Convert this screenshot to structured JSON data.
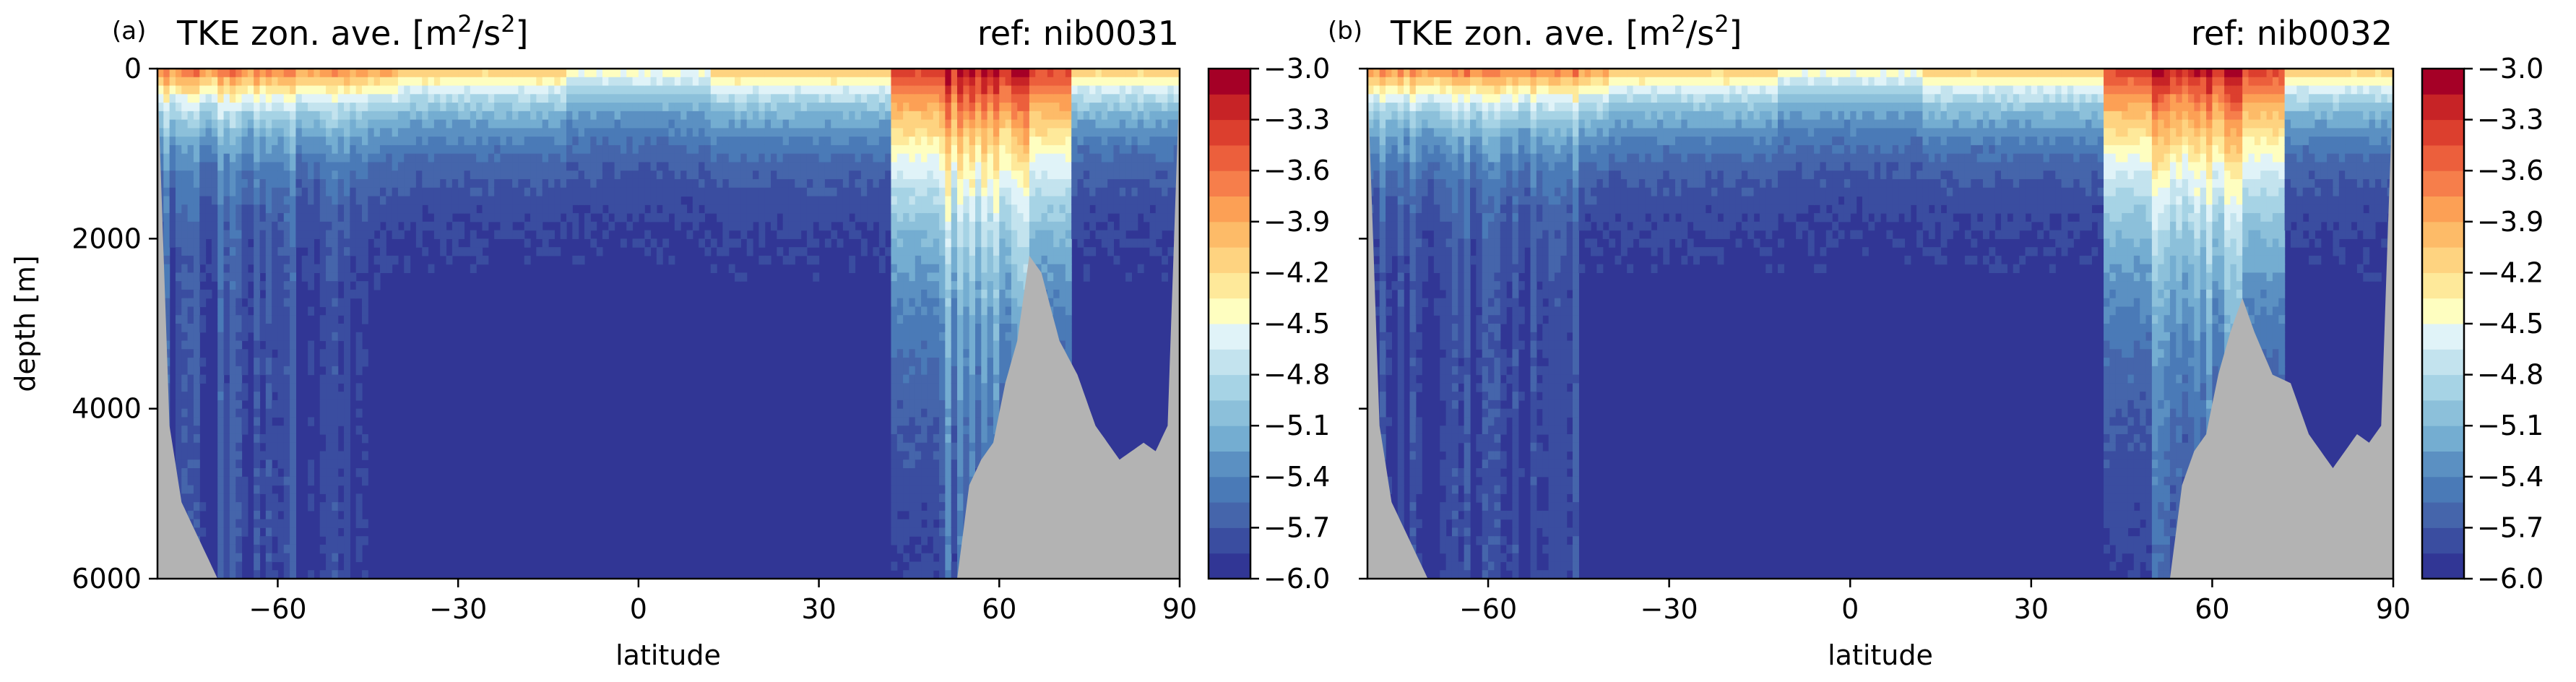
{
  "chart_data": [
    {
      "type": "heatmap",
      "panel_label": "(a)",
      "title": "TKE zon. ave. [m",
      "title_sup1": "2",
      "title_mid": "/s",
      "title_sup2": "2",
      "title_end": "]",
      "ref_label": "ref: nib0031",
      "xlabel": "latitude",
      "ylabel": "depth [m]",
      "xlim": [
        -80,
        90
      ],
      "ylim": [
        6000,
        0
      ],
      "x_ticks": [
        -60,
        -30,
        0,
        30,
        60,
        90
      ],
      "x_tick_labels": [
        "−60",
        "−30",
        "0",
        "30",
        "60",
        "90"
      ],
      "y_ticks": [
        0,
        2000,
        4000,
        6000
      ],
      "y_tick_labels": [
        "0",
        "2000",
        "4000",
        "6000"
      ],
      "colorbar": {
        "min": -6.0,
        "max": -3.0,
        "step": 0.15,
        "tick_values": [
          -3.0,
          -3.3,
          -3.6,
          -3.9,
          -4.2,
          -4.5,
          -4.8,
          -5.1,
          -5.4,
          -5.7,
          -6.0
        ],
        "tick_labels": [
          "−3.0",
          "−3.3",
          "−3.6",
          "−3.9",
          "−4.2",
          "−4.5",
          "−4.8",
          "−5.1",
          "−5.4",
          "−5.7",
          "−6.0"
        ],
        "colormap": "RdYlBu_r"
      },
      "bathymetry": {
        "lat": [
          -80,
          -78,
          -76,
          -74,
          -72,
          -70,
          -68,
          -66,
          -63,
          -60,
          -55,
          -50,
          -40,
          -30,
          -20,
          -10,
          0,
          10,
          20,
          30,
          40,
          50,
          53,
          55,
          57,
          59,
          61,
          63,
          65,
          67,
          70,
          73,
          76,
          80,
          84,
          86,
          88,
          90
        ],
        "depth": [
          100,
          4200,
          5100,
          5400,
          5700,
          6000,
          6000,
          6000,
          6000,
          6000,
          6000,
          6000,
          6000,
          6000,
          6000,
          6000,
          6000,
          6000,
          6000,
          6000,
          6000,
          6000,
          6000,
          4900,
          4600,
          4400,
          3700,
          3200,
          2200,
          2400,
          3200,
          3600,
          4200,
          4600,
          4400,
          4500,
          4200,
          100
        ]
      },
      "land_color": "#b3b3b3"
    },
    {
      "type": "heatmap",
      "panel_label": "(b)",
      "title": "TKE zon. ave. [m",
      "title_sup1": "2",
      "title_mid": "/s",
      "title_sup2": "2",
      "title_end": "]",
      "ref_label": "ref: nib0032",
      "xlabel": "latitude",
      "ylabel": "",
      "xlim": [
        -80,
        90
      ],
      "ylim": [
        6000,
        0
      ],
      "x_ticks": [
        -60,
        -30,
        0,
        30,
        60,
        90
      ],
      "x_tick_labels": [
        "−60",
        "−30",
        "0",
        "30",
        "60",
        "90"
      ],
      "y_ticks": [
        0,
        2000,
        4000,
        6000
      ],
      "colorbar": {
        "min": -6.0,
        "max": -3.0,
        "step": 0.15,
        "tick_values": [
          -3.0,
          -3.3,
          -3.6,
          -3.9,
          -4.2,
          -4.5,
          -4.8,
          -5.1,
          -5.4,
          -5.7,
          -6.0
        ],
        "tick_labels": [
          "−3.0",
          "−3.3",
          "−3.6",
          "−3.9",
          "−4.2",
          "−4.5",
          "−4.8",
          "−5.1",
          "−5.4",
          "−5.7",
          "−6.0"
        ],
        "colormap": "RdYlBu_r"
      },
      "bathymetry": {
        "lat": [
          -80,
          -78,
          -76,
          -74,
          -72,
          -70,
          -68,
          -66,
          -63,
          -60,
          -55,
          -50,
          -40,
          -30,
          -20,
          -10,
          0,
          10,
          20,
          30,
          40,
          50,
          53,
          55,
          57,
          59,
          61,
          63,
          65,
          67,
          70,
          73,
          76,
          80,
          84,
          86,
          88,
          90
        ],
        "depth": [
          100,
          4200,
          5100,
          5400,
          5700,
          6000,
          6000,
          6000,
          6000,
          6000,
          6000,
          6000,
          6000,
          6000,
          6000,
          6000,
          6000,
          6000,
          6000,
          6000,
          6000,
          6000,
          6000,
          4900,
          4500,
          4300,
          3600,
          3100,
          2700,
          3100,
          3600,
          3700,
          4300,
          4700,
          4300,
          4400,
          4200,
          100
        ]
      },
      "land_color": "#b3b3b3"
    }
  ]
}
